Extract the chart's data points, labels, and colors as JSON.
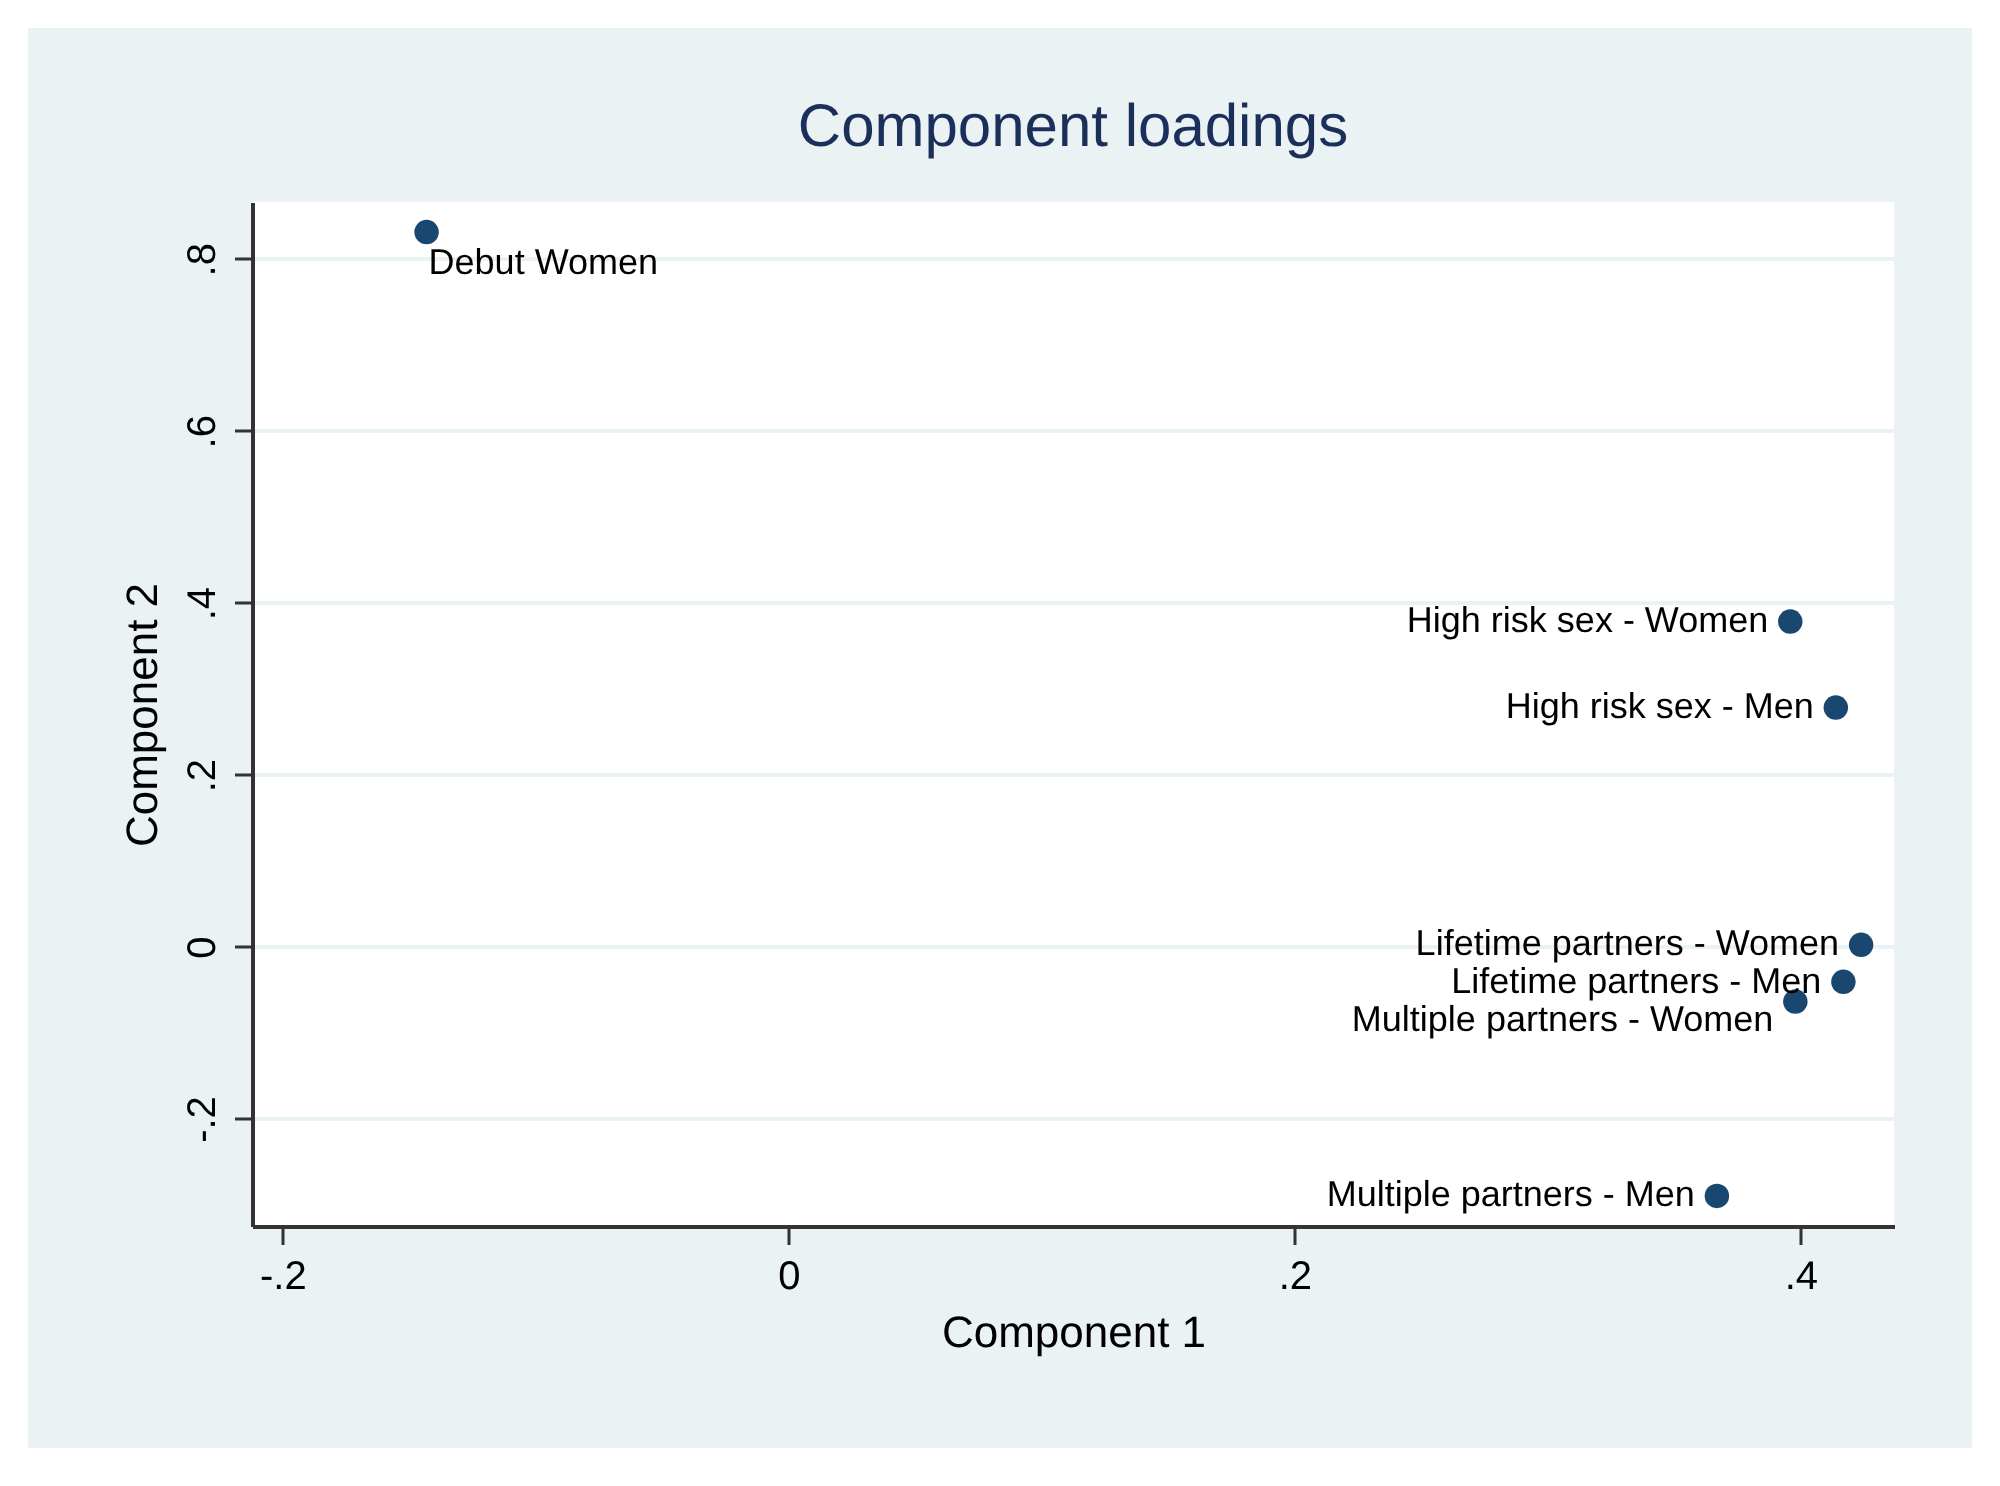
{
  "chart_data": {
    "type": "scatter",
    "title": "Component loadings",
    "xlabel": "Component 1",
    "ylabel": "Component 2",
    "series": [
      {
        "color": "#1a476f",
        "x": [
          -0.143,
          0.396,
          0.414,
          0.424,
          0.417,
          0.398,
          0.367
        ],
        "values": [
          0.831,
          0.378,
          0.278,
          0.002,
          -0.041,
          -0.064,
          -0.29
        ]
      }
    ],
    "marker": "circle",
    "grid": "y",
    "xlim": [
      -0.212,
      0.437
    ],
    "ylim": [
      -0.325,
      0.866
    ],
    "xticks": [
      {
        "value": -0.2,
        "label": "-.2"
      },
      0,
      {
        "value": 0.2,
        "label": ".2"
      },
      {
        "value": 0.4,
        "label": ".4"
      }
    ],
    "yticks": [
      {
        "value": -0.2,
        "label": "-.2"
      },
      0,
      {
        "value": 0.2,
        "label": ".2"
      },
      {
        "value": 0.4,
        "label": ".4"
      },
      {
        "value": 0.6,
        "label": ".6"
      },
      {
        "value": 0.8,
        "label": ".8"
      }
    ],
    "annotations": [
      {
        "text": "Debut Women",
        "x": -0.143,
        "y": 0.831
      },
      {
        "text": "High risk sex - Women",
        "x": 0.396,
        "y": 0.378
      },
      {
        "text": "High risk sex - Men",
        "x": 0.414,
        "y": 0.278
      },
      {
        "text": "Lifetime partners - Women",
        "x": 0.424,
        "y": 0.002
      },
      {
        "text": "Lifetime partners - Men",
        "x": 0.417,
        "y": -0.041
      },
      {
        "text": "Multiple partners - Women",
        "x": 0.398,
        "y": -0.064
      },
      {
        "text": "Multiple partners - Men",
        "x": 0.367,
        "y": -0.29
      }
    ]
  }
}
